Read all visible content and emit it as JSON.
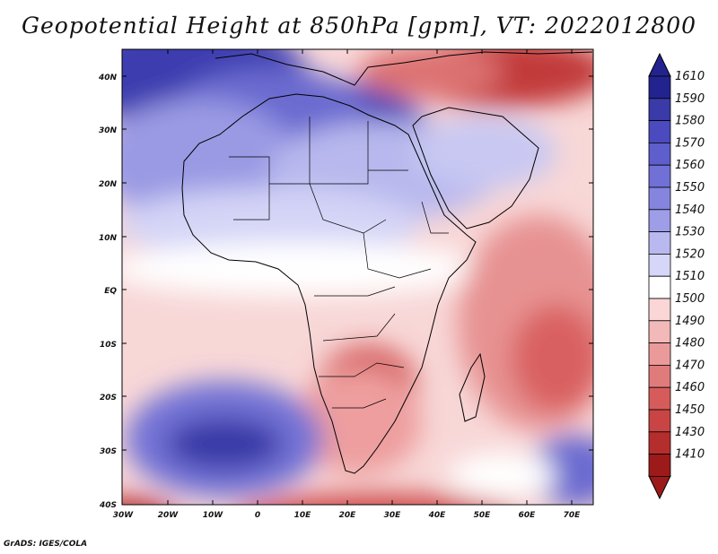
{
  "title": "Geopotential Height at 850hPa [gpm], VT: 2022012800",
  "credit": "GrADS: IGES/COLA",
  "lat_labels": [
    "40N",
    "30N",
    "20N",
    "10N",
    "EQ",
    "10S",
    "20S",
    "30S",
    "40S"
  ],
  "lon_labels": [
    "30W",
    "20W",
    "10W",
    "0",
    "10E",
    "20E",
    "30E",
    "40E",
    "50E",
    "60E",
    "70E"
  ],
  "colorbar": {
    "levels": [
      "1610",
      "1590",
      "1580",
      "1570",
      "1560",
      "1550",
      "1540",
      "1530",
      "1520",
      "1510",
      "1500",
      "1490",
      "1480",
      "1470",
      "1460",
      "1450",
      "1430",
      "1410"
    ],
    "colors": [
      "#23238f",
      "#3a3aa8",
      "#4b4bbf",
      "#5e5ecc",
      "#7070d6",
      "#8585e0",
      "#9d9de8",
      "#b9b9f0",
      "#d6d6f8",
      "#ffffff",
      "#fad6d6",
      "#f3b8b8",
      "#eb9a9a",
      "#e07b7b",
      "#d65c5c",
      "#c94444",
      "#b52e2e",
      "#9c1a1a"
    ]
  },
  "colors": {
    "ocean_warm": "#f6c9c9",
    "land_border": "#000000"
  }
}
